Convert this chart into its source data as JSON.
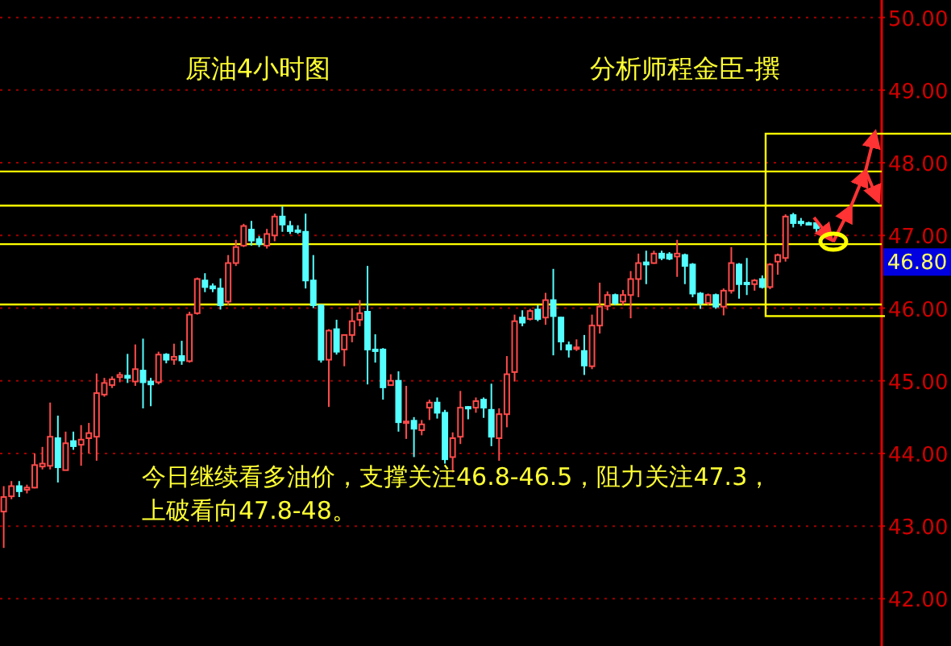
{
  "chart_data": {
    "type": "candlestick",
    "title": "原油4小时图",
    "subtitle": "分析师程金臣-撰",
    "categories": [
      null,
      null,
      null,
      null,
      null,
      null,
      null,
      null,
      null,
      null,
      null,
      null,
      null,
      null,
      null,
      null,
      null,
      null,
      null,
      null,
      null,
      null,
      null,
      null,
      null,
      null,
      null,
      null,
      null,
      null,
      null,
      null,
      null,
      null,
      null,
      null,
      null,
      null,
      null,
      null,
      null,
      null,
      null,
      null,
      null,
      null,
      null,
      null,
      null,
      null,
      null,
      null,
      null,
      null,
      null,
      null,
      null,
      null,
      null,
      null,
      null,
      null,
      null,
      null,
      null,
      null,
      null,
      null,
      null,
      null,
      null,
      null,
      null,
      null,
      null,
      null,
      null,
      null,
      null,
      null,
      null,
      null,
      null,
      null,
      null,
      null,
      null,
      null,
      null,
      null,
      null,
      null,
      null,
      null,
      null,
      null,
      null,
      null,
      null,
      null,
      null,
      null,
      null,
      null,
      null,
      null
    ],
    "ohlc": [
      [
        43.2,
        43.55,
        42.7,
        43.4
      ],
      [
        43.41,
        43.62,
        43.37,
        43.55
      ],
      [
        43.55,
        43.62,
        43.4,
        43.48
      ],
      [
        43.5,
        43.57,
        43.45,
        43.53
      ],
      [
        43.53,
        44.0,
        43.52,
        43.84
      ],
      [
        43.82,
        44.09,
        43.78,
        43.86
      ],
      [
        43.83,
        44.7,
        43.78,
        44.23
      ],
      [
        44.21,
        44.52,
        43.6,
        43.81
      ],
      [
        43.77,
        44.3,
        43.77,
        44.14
      ],
      [
        44.17,
        44.3,
        44.05,
        44.1
      ],
      [
        44.12,
        44.39,
        43.83,
        44.19
      ],
      [
        44.21,
        44.42,
        44.0,
        44.28
      ],
      [
        44.23,
        45.1,
        43.9,
        44.83
      ],
      [
        44.81,
        45.04,
        44.78,
        44.97
      ],
      [
        44.94,
        45.06,
        44.9,
        45.02
      ],
      [
        45.05,
        45.12,
        44.98,
        45.08
      ],
      [
        45.07,
        45.37,
        44.97,
        45.04
      ],
      [
        44.99,
        45.5,
        44.93,
        45.16
      ],
      [
        45.14,
        45.58,
        44.62,
        44.98
      ],
      [
        44.99,
        45.04,
        44.65,
        44.95
      ],
      [
        44.98,
        45.4,
        44.95,
        45.36
      ],
      [
        45.36,
        45.38,
        45.24,
        45.29
      ],
      [
        45.29,
        45.51,
        45.22,
        45.33
      ],
      [
        45.34,
        45.55,
        45.22,
        45.28
      ],
      [
        45.27,
        45.95,
        45.25,
        45.91
      ],
      [
        45.93,
        46.42,
        45.91,
        46.4
      ],
      [
        46.38,
        46.48,
        46.22,
        46.29
      ],
      [
        46.3,
        46.34,
        46.22,
        46.27
      ],
      [
        46.27,
        46.41,
        45.98,
        46.04
      ],
      [
        46.09,
        46.73,
        46.04,
        46.62
      ],
      [
        46.62,
        46.94,
        46.58,
        46.84
      ],
      [
        46.86,
        47.16,
        46.84,
        47.13
      ],
      [
        47.08,
        47.2,
        46.86,
        46.93
      ],
      [
        46.95,
        46.99,
        46.84,
        46.88
      ],
      [
        46.86,
        47.09,
        46.82,
        47.02
      ],
      [
        47.0,
        47.3,
        46.92,
        47.26
      ],
      [
        47.26,
        47.4,
        47.05,
        47.15
      ],
      [
        47.13,
        47.2,
        47.02,
        47.06
      ],
      [
        47.07,
        47.14,
        47.02,
        47.05
      ],
      [
        47.05,
        47.3,
        46.27,
        46.38
      ],
      [
        46.38,
        46.73,
        46.0,
        46.04
      ],
      [
        46.04,
        46.05,
        45.25,
        45.29
      ],
      [
        45.29,
        45.71,
        44.64,
        45.69
      ],
      [
        45.71,
        45.84,
        45.36,
        45.4
      ],
      [
        45.43,
        45.64,
        45.2,
        45.63
      ],
      [
        45.63,
        46.0,
        45.53,
        45.82
      ],
      [
        45.84,
        46.11,
        45.75,
        45.93
      ],
      [
        45.95,
        46.58,
        44.95,
        45.43
      ],
      [
        45.43,
        45.64,
        45.25,
        45.41
      ],
      [
        45.43,
        45.45,
        44.74,
        44.91
      ],
      [
        44.94,
        45.09,
        44.94,
        45.0
      ],
      [
        45.0,
        45.13,
        44.3,
        44.43
      ],
      [
        44.42,
        44.93,
        44.2,
        44.44
      ],
      [
        44.45,
        44.5,
        43.95,
        44.34
      ],
      [
        44.32,
        44.46,
        44.25,
        44.4
      ],
      [
        44.63,
        44.74,
        44.46,
        44.7
      ],
      [
        44.7,
        44.77,
        44.48,
        44.56
      ],
      [
        44.56,
        44.6,
        43.86,
        43.92
      ],
      [
        43.95,
        44.29,
        43.74,
        44.21
      ],
      [
        44.23,
        44.86,
        44.13,
        44.63
      ],
      [
        44.64,
        44.65,
        44.47,
        44.62
      ],
      [
        44.63,
        44.77,
        44.56,
        44.72
      ],
      [
        44.74,
        44.77,
        44.49,
        44.63
      ],
      [
        44.6,
        44.96,
        44.1,
        44.23
      ],
      [
        44.21,
        44.62,
        43.9,
        44.54
      ],
      [
        44.54,
        45.34,
        44.36,
        45.09
      ],
      [
        45.12,
        45.91,
        44.99,
        45.82
      ],
      [
        45.87,
        45.97,
        45.75,
        45.8
      ],
      [
        45.85,
        45.99,
        45.83,
        45.96
      ],
      [
        45.98,
        46.04,
        45.82,
        45.85
      ],
      [
        45.87,
        46.21,
        45.77,
        46.11
      ],
      [
        46.11,
        46.54,
        45.35,
        45.89
      ],
      [
        45.87,
        45.88,
        45.42,
        45.54
      ],
      [
        45.49,
        45.54,
        45.32,
        45.43
      ],
      [
        45.44,
        45.57,
        45.41,
        45.46
      ],
      [
        45.41,
        45.63,
        45.08,
        45.21
      ],
      [
        45.2,
        45.91,
        45.16,
        45.76
      ],
      [
        45.76,
        46.35,
        45.65,
        46.02
      ],
      [
        46.03,
        46.23,
        45.97,
        46.18
      ],
      [
        46.18,
        46.2,
        46.04,
        46.07
      ],
      [
        46.09,
        46.25,
        46.04,
        46.18
      ],
      [
        46.18,
        46.51,
        45.86,
        46.4
      ],
      [
        46.4,
        46.75,
        46.15,
        46.62
      ],
      [
        46.63,
        46.79,
        46.33,
        46.6
      ],
      [
        46.62,
        46.79,
        46.61,
        46.75
      ],
      [
        46.75,
        46.79,
        46.66,
        46.69
      ],
      [
        46.74,
        46.77,
        46.66,
        46.68
      ],
      [
        46.71,
        46.94,
        46.43,
        46.75
      ],
      [
        46.73,
        46.75,
        46.33,
        46.58
      ],
      [
        46.6,
        46.62,
        46.15,
        46.2
      ],
      [
        46.2,
        46.22,
        45.99,
        46.07
      ],
      [
        46.07,
        46.2,
        46.04,
        46.18
      ],
      [
        46.18,
        46.2,
        45.99,
        46.02
      ],
      [
        46.02,
        46.27,
        45.9,
        46.24
      ],
      [
        46.24,
        46.84,
        46.2,
        46.62
      ],
      [
        46.6,
        46.62,
        46.13,
        46.33
      ],
      [
        46.35,
        46.69,
        46.18,
        46.33
      ],
      [
        46.33,
        46.4,
        46.24,
        46.38
      ],
      [
        46.4,
        46.45,
        46.27,
        46.29
      ],
      [
        46.29,
        46.62,
        46.26,
        46.6
      ],
      [
        46.64,
        46.75,
        46.46,
        46.73
      ],
      [
        46.69,
        47.29,
        46.64,
        47.26
      ],
      [
        47.28,
        47.31,
        47.11,
        47.17
      ],
      [
        47.19,
        47.24,
        47.13,
        47.17
      ],
      [
        47.17,
        47.19,
        47.14,
        47.16
      ],
      [
        47.17,
        47.19,
        47.04,
        47.1
      ]
    ],
    "ylim": [
      41.35,
      50.24
    ],
    "yticks": [
      {
        "value": 42,
        "label": "42.00"
      },
      {
        "value": 43,
        "label": "43.00"
      },
      {
        "value": 44,
        "label": "44.00"
      },
      {
        "value": 45,
        "label": "45.00"
      },
      {
        "value": 46,
        "label": "46.00"
      },
      {
        "value": 47,
        "label": "47.00"
      },
      {
        "value": 48,
        "label": "48.00"
      },
      {
        "value": 49,
        "label": "49.00"
      },
      {
        "value": 50,
        "label": "50.00"
      }
    ],
    "grid": "y",
    "tick_labels": "y",
    "ref_lines": [
      {
        "axis": "y",
        "value": 46.05,
        "color": "#ffff00"
      },
      {
        "axis": "y",
        "value": 46.88,
        "color": "#ffff00"
      },
      {
        "axis": "y",
        "value": 47.41,
        "color": "#ffff00"
      },
      {
        "axis": "y",
        "value": 47.88,
        "color": "#ffff00"
      }
    ],
    "annotations": [
      "今日继续看多油价，支撑关注46.8-46.5，阻力关注47.3，上破看向47.8-48。",
      "46.80"
    ]
  }
}
